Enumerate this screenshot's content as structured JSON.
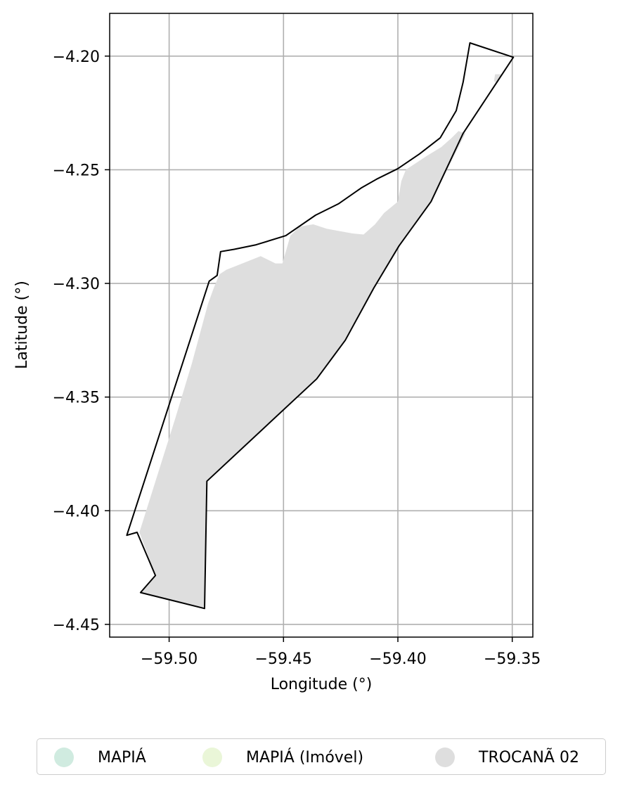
{
  "chart_data": {
    "type": "map",
    "xlabel": "Longitude (°)",
    "ylabel": "Latitude (°)",
    "xlim": [
      -59.526,
      -59.341
    ],
    "ylim": [
      -4.4556,
      -4.1812
    ],
    "xticks": [
      -59.5,
      -59.45,
      -59.4,
      -59.35
    ],
    "xtick_labels": [
      "−59.50",
      "−59.45",
      "−59.40",
      "−59.35"
    ],
    "yticks": [
      -4.2,
      -4.25,
      -4.3,
      -4.35,
      -4.4,
      -4.45
    ],
    "ytick_labels": [
      "−4.20",
      "−4.25",
      "−4.30",
      "−4.35",
      "−4.40",
      "−4.45"
    ],
    "grid": true,
    "legend_position": "bottom-center",
    "legend": [
      {
        "label": "MAPIÁ",
        "color": "#d0ebe0"
      },
      {
        "label": "MAPIÁ (Imóvel)",
        "color": "#eaf6d8"
      },
      {
        "label": "TROCANÃ 02",
        "color": "#dedede"
      }
    ],
    "boundary_color": "#000000",
    "fill_color": "#dedede",
    "boundary_outline": [
      [
        -59.3685,
        -4.1942
      ],
      [
        -59.3495,
        -4.2005
      ],
      [
        -59.3715,
        -4.234
      ],
      [
        -59.3855,
        -4.264
      ],
      [
        -59.3995,
        -4.2835
      ],
      [
        -59.4105,
        -4.302
      ],
      [
        -59.423,
        -4.325
      ],
      [
        -59.4355,
        -4.342
      ],
      [
        -59.4835,
        -4.387
      ],
      [
        -59.4845,
        -4.443
      ],
      [
        -59.5125,
        -4.436
      ],
      [
        -59.506,
        -4.4285
      ],
      [
        -59.514,
        -4.4095
      ],
      [
        -59.5185,
        -4.4108
      ],
      [
        -59.4825,
        -4.299
      ],
      [
        -59.479,
        -4.2965
      ],
      [
        -59.4775,
        -4.286
      ],
      [
        -59.4715,
        -4.285
      ],
      [
        -59.462,
        -4.283
      ],
      [
        -59.449,
        -4.279
      ],
      [
        -59.436,
        -4.27
      ],
      [
        -59.426,
        -4.265
      ],
      [
        -59.416,
        -4.258
      ],
      [
        -59.409,
        -4.254
      ],
      [
        -59.4,
        -4.2495
      ],
      [
        -59.3905,
        -4.243
      ],
      [
        -59.3815,
        -4.236
      ],
      [
        -59.3745,
        -4.224
      ],
      [
        -59.3715,
        -4.2115
      ]
    ],
    "filled_region": [
      [
        -59.3705,
        -4.234
      ],
      [
        -59.3855,
        -4.264
      ],
      [
        -59.3995,
        -4.2835
      ],
      [
        -59.4105,
        -4.302
      ],
      [
        -59.423,
        -4.325
      ],
      [
        -59.4355,
        -4.342
      ],
      [
        -59.4835,
        -4.387
      ],
      [
        -59.4845,
        -4.443
      ],
      [
        -59.5125,
        -4.436
      ],
      [
        -59.506,
        -4.4285
      ],
      [
        -59.513,
        -4.4095
      ],
      [
        -59.4975,
        -4.36
      ],
      [
        -59.49,
        -4.335
      ],
      [
        -59.483,
        -4.309
      ],
      [
        -59.4805,
        -4.302
      ],
      [
        -59.478,
        -4.296
      ],
      [
        -59.475,
        -4.294
      ],
      [
        -59.47,
        -4.292
      ],
      [
        -59.465,
        -4.29
      ],
      [
        -59.46,
        -4.288
      ],
      [
        -59.4535,
        -4.2912
      ],
      [
        -59.4505,
        -4.2912
      ],
      [
        -59.4495,
        -4.2878
      ],
      [
        -59.447,
        -4.279
      ],
      [
        -59.443,
        -4.275
      ],
      [
        -59.437,
        -4.274
      ],
      [
        -59.431,
        -4.276
      ],
      [
        -59.42,
        -4.278
      ],
      [
        -59.415,
        -4.2785
      ],
      [
        -59.41,
        -4.274
      ],
      [
        -59.406,
        -4.269
      ],
      [
        -59.4,
        -4.264
      ],
      [
        -59.3985,
        -4.255
      ],
      [
        -59.3965,
        -4.25
      ],
      [
        -59.3875,
        -4.244
      ],
      [
        -59.381,
        -4.24
      ],
      [
        -59.3765,
        -4.236
      ],
      [
        -59.3735,
        -4.233
      ]
    ],
    "filled_patch": [
      [
        -59.3575,
        -4.208
      ],
      [
        -59.3545,
        -4.208
      ],
      [
        -59.3565,
        -4.212
      ],
      [
        -59.358,
        -4.211
      ]
    ]
  }
}
